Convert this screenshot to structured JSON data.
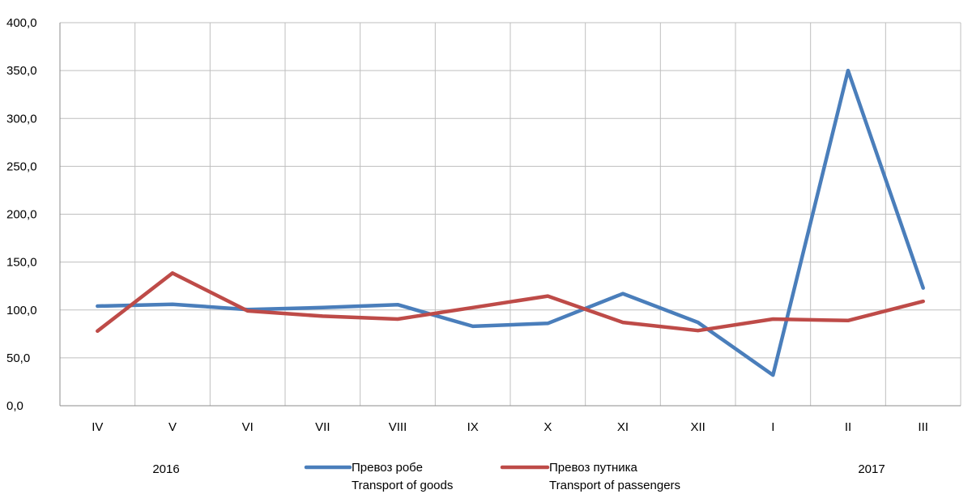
{
  "chart_data": {
    "type": "line",
    "categories": [
      "IV",
      "V",
      "VI",
      "VII",
      "VIII",
      "IX",
      "X",
      "XI",
      "XII",
      "I",
      "II",
      "III"
    ],
    "year_labels": [
      "2016",
      "2017"
    ],
    "ylim": [
      0,
      400
    ],
    "yticks": [
      "0,0",
      "50,0",
      "100,0",
      "150,0",
      "200,0",
      "250,0",
      "300,0",
      "350,0",
      "400,0"
    ],
    "grid": true,
    "legend_position": "bottom",
    "series": [
      {
        "name": "Превоз робе",
        "name_en": "Transport of goods",
        "color": "#4a7ebb",
        "values": [
          104.0,
          106.0,
          100.5,
          102.5,
          105.5,
          83.0,
          86.0,
          117.0,
          87.0,
          32.0,
          350.0,
          123.0
        ]
      },
      {
        "name": "Превоз путника",
        "name_en": "Transport of passengers",
        "color": "#be4b48",
        "values": [
          78.0,
          138.5,
          99.0,
          93.5,
          90.5,
          102.5,
          114.5,
          87.0,
          78.5,
          90.5,
          89.0,
          109.0
        ]
      }
    ]
  }
}
